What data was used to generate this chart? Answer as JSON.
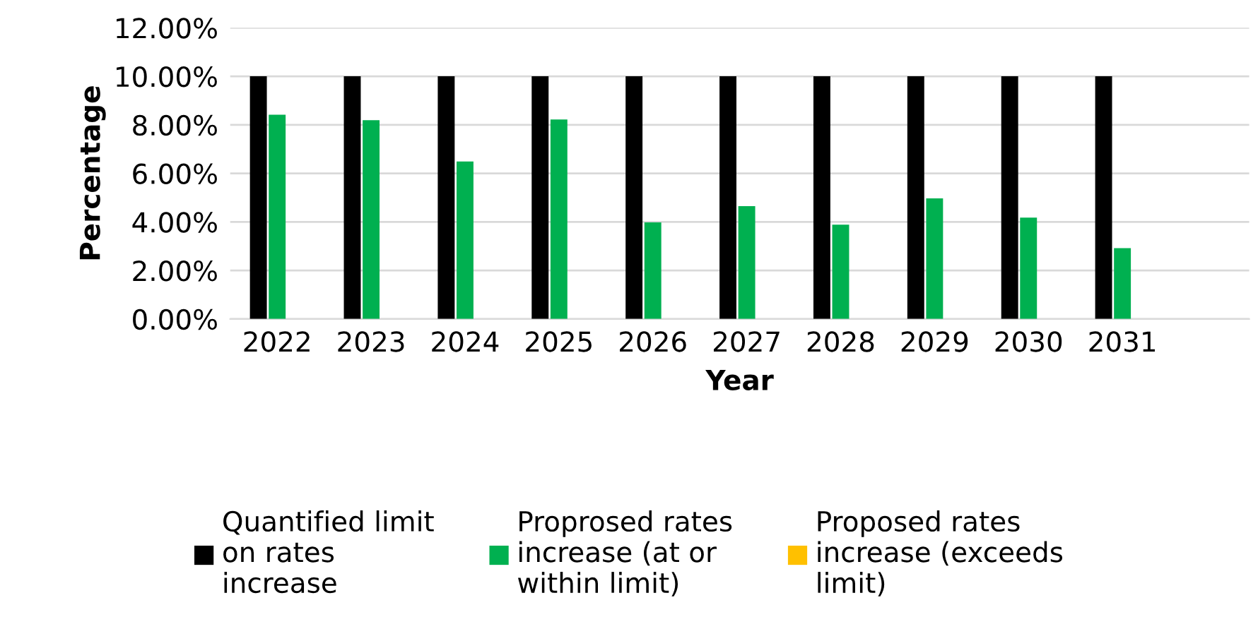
{
  "chart_data": {
    "type": "bar",
    "xlabel": "Year",
    "ylabel": "Percentage",
    "categories": [
      "2022",
      "2023",
      "2024",
      "2025",
      "2026",
      "2027",
      "2028",
      "2029",
      "2030",
      "2031"
    ],
    "series": [
      {
        "name": "Quantified limit\non rates\nincrease",
        "color": "#000000",
        "values": [
          10,
          10,
          10,
          10,
          10,
          10,
          10,
          10,
          10,
          10
        ]
      },
      {
        "name": "Proprosed rates\nincrease (at or\nwithin limit)",
        "color": "#00b050",
        "values": [
          8.42,
          8.19,
          6.49,
          8.22,
          3.98,
          4.65,
          3.89,
          4.97,
          4.18,
          2.92
        ]
      },
      {
        "name": "Proposed rates\nincrease (exceeds\nlimit)",
        "color": "#ffc000",
        "values": [
          0,
          0,
          0,
          0,
          0,
          0,
          0,
          0,
          0,
          0
        ]
      }
    ],
    "ylim": [
      0,
      12
    ],
    "yticks": [
      {
        "value": 0,
        "label": "0.00%"
      },
      {
        "value": 2,
        "label": "2.00%"
      },
      {
        "value": 4,
        "label": "4.00%"
      },
      {
        "value": 6,
        "label": "6.00%"
      },
      {
        "value": 8,
        "label": "8.00%"
      },
      {
        "value": 10,
        "label": "10.00%"
      },
      {
        "value": 12,
        "label": "12.00%"
      }
    ],
    "grid": "y",
    "legend": "bottom"
  }
}
